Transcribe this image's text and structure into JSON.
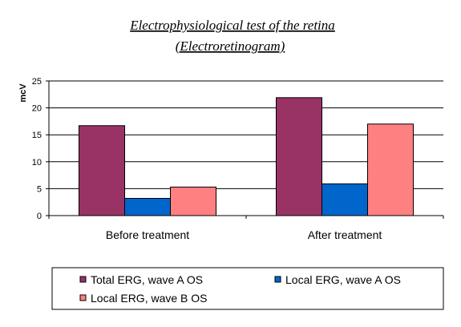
{
  "chart_data": {
    "type": "bar",
    "title": "Electrophysiological test of the retina",
    "subtitle": "(Electroretinogram)",
    "xlabel": "",
    "ylabel": "mcV",
    "ylim": [
      0,
      25
    ],
    "yticks": [
      0,
      5,
      10,
      15,
      20,
      25
    ],
    "grid": true,
    "legend_position": "bottom",
    "categories": [
      "Before treatment",
      "After treatment"
    ],
    "series": [
      {
        "name": "Total ERG, wave A OS",
        "color": "#993366",
        "values": [
          16.7,
          21.9
        ]
      },
      {
        "name": "Local ERG, wave A OS",
        "color": "#0066CC",
        "values": [
          3.2,
          5.9
        ]
      },
      {
        "name": "Local ERG, wave B OS",
        "color": "#FF8080",
        "values": [
          5.3,
          17.0
        ]
      }
    ]
  }
}
